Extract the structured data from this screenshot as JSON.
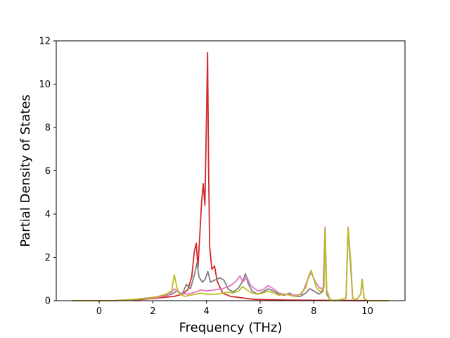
{
  "chart_data": {
    "type": "line",
    "title": "",
    "xlabel": "Frequency (THz)",
    "ylabel": "Partial Density of States",
    "xlim": [
      -1.6,
      11.4
    ],
    "ylim": [
      0,
      12
    ],
    "xticks": [
      0,
      2,
      4,
      6,
      8,
      10
    ],
    "yticks": [
      0,
      2,
      4,
      6,
      8,
      10,
      12
    ],
    "grid": false,
    "legend": "none",
    "series": [
      {
        "color": "#d62728",
        "points": [
          [
            -1.0,
            0
          ],
          [
            0.5,
            0
          ],
          [
            1.0,
            0.02
          ],
          [
            1.5,
            0.05
          ],
          [
            2.0,
            0.1
          ],
          [
            2.4,
            0.15
          ],
          [
            2.8,
            0.2
          ],
          [
            3.1,
            0.3
          ],
          [
            3.3,
            0.5
          ],
          [
            3.45,
            1.1
          ],
          [
            3.55,
            2.3
          ],
          [
            3.62,
            2.65
          ],
          [
            3.68,
            1.5
          ],
          [
            3.75,
            3.0
          ],
          [
            3.82,
            4.6
          ],
          [
            3.88,
            5.4
          ],
          [
            3.94,
            4.4
          ],
          [
            4.0,
            8.5
          ],
          [
            4.04,
            11.45
          ],
          [
            4.08,
            6.0
          ],
          [
            4.12,
            2.5
          ],
          [
            4.2,
            1.45
          ],
          [
            4.3,
            1.6
          ],
          [
            4.4,
            0.9
          ],
          [
            4.6,
            0.35
          ],
          [
            4.9,
            0.2
          ],
          [
            5.2,
            0.15
          ],
          [
            5.5,
            0.1
          ],
          [
            5.8,
            0.06
          ],
          [
            6.2,
            0.05
          ],
          [
            7.0,
            0.03
          ],
          [
            8.0,
            0.02
          ],
          [
            9.0,
            0.01
          ],
          [
            10.8,
            0
          ]
        ]
      },
      {
        "color": "#7f7f7f",
        "points": [
          [
            -1.0,
            0
          ],
          [
            0.5,
            0
          ],
          [
            1.2,
            0.05
          ],
          [
            1.8,
            0.12
          ],
          [
            2.3,
            0.2
          ],
          [
            2.7,
            0.3
          ],
          [
            2.9,
            0.45
          ],
          [
            3.1,
            0.3
          ],
          [
            3.25,
            0.75
          ],
          [
            3.4,
            0.55
          ],
          [
            3.55,
            1.2
          ],
          [
            3.65,
            1.75
          ],
          [
            3.72,
            1.1
          ],
          [
            3.85,
            0.85
          ],
          [
            3.95,
            1.0
          ],
          [
            4.05,
            1.35
          ],
          [
            4.15,
            0.85
          ],
          [
            4.3,
            0.95
          ],
          [
            4.5,
            1.05
          ],
          [
            4.65,
            0.95
          ],
          [
            4.8,
            0.55
          ],
          [
            5.0,
            0.4
          ],
          [
            5.2,
            0.6
          ],
          [
            5.35,
            0.9
          ],
          [
            5.45,
            1.25
          ],
          [
            5.55,
            0.8
          ],
          [
            5.7,
            0.45
          ],
          [
            5.9,
            0.3
          ],
          [
            6.1,
            0.4
          ],
          [
            6.3,
            0.55
          ],
          [
            6.5,
            0.45
          ],
          [
            6.7,
            0.3
          ],
          [
            6.9,
            0.25
          ],
          [
            7.1,
            0.35
          ],
          [
            7.3,
            0.2
          ],
          [
            7.5,
            0.2
          ],
          [
            7.7,
            0.35
          ],
          [
            7.85,
            0.55
          ],
          [
            8.0,
            0.45
          ],
          [
            8.2,
            0.3
          ],
          [
            8.35,
            0.45
          ],
          [
            8.42,
            3.3
          ],
          [
            8.48,
            0.3
          ],
          [
            8.6,
            0.05
          ],
          [
            8.8,
            0
          ],
          [
            9.2,
            0.1
          ],
          [
            9.28,
            3.3
          ],
          [
            9.38,
            1.5
          ],
          [
            9.45,
            0.1
          ],
          [
            9.6,
            0.05
          ],
          [
            9.75,
            0.3
          ],
          [
            9.8,
            0.95
          ],
          [
            9.88,
            0.1
          ],
          [
            10.0,
            0
          ],
          [
            10.8,
            0
          ]
        ]
      },
      {
        "color": "#e377c2",
        "points": [
          [
            -1.0,
            0
          ],
          [
            0.5,
            0
          ],
          [
            1.2,
            0.05
          ],
          [
            1.8,
            0.1
          ],
          [
            2.3,
            0.18
          ],
          [
            2.6,
            0.25
          ],
          [
            2.8,
            0.55
          ],
          [
            3.0,
            0.35
          ],
          [
            3.3,
            0.3
          ],
          [
            3.6,
            0.4
          ],
          [
            3.8,
            0.5
          ],
          [
            4.0,
            0.45
          ],
          [
            4.3,
            0.5
          ],
          [
            4.6,
            0.55
          ],
          [
            4.9,
            0.7
          ],
          [
            5.1,
            0.9
          ],
          [
            5.25,
            1.15
          ],
          [
            5.35,
            0.85
          ],
          [
            5.5,
            1.1
          ],
          [
            5.65,
            0.7
          ],
          [
            5.9,
            0.45
          ],
          [
            6.1,
            0.5
          ],
          [
            6.3,
            0.7
          ],
          [
            6.5,
            0.55
          ],
          [
            6.7,
            0.35
          ],
          [
            6.9,
            0.3
          ],
          [
            7.1,
            0.3
          ],
          [
            7.3,
            0.25
          ],
          [
            7.55,
            0.3
          ],
          [
            7.75,
            0.9
          ],
          [
            7.9,
            1.3
          ],
          [
            8.05,
            0.9
          ],
          [
            8.2,
            0.6
          ],
          [
            8.35,
            0.55
          ],
          [
            8.42,
            3.4
          ],
          [
            8.48,
            0.5
          ],
          [
            8.6,
            0.05
          ],
          [
            8.8,
            0
          ],
          [
            9.2,
            0.1
          ],
          [
            9.28,
            3.4
          ],
          [
            9.38,
            1.6
          ],
          [
            9.45,
            0.1
          ],
          [
            9.6,
            0.05
          ],
          [
            9.75,
            0.3
          ],
          [
            9.8,
            1.0
          ],
          [
            9.88,
            0.1
          ],
          [
            10.0,
            0
          ],
          [
            10.8,
            0
          ]
        ]
      },
      {
        "color": "#bcbd22",
        "points": [
          [
            -1.0,
            0
          ],
          [
            0.5,
            0
          ],
          [
            1.2,
            0.05
          ],
          [
            1.8,
            0.1
          ],
          [
            2.2,
            0.2
          ],
          [
            2.5,
            0.3
          ],
          [
            2.7,
            0.45
          ],
          [
            2.8,
            1.2
          ],
          [
            2.9,
            0.6
          ],
          [
            3.0,
            0.3
          ],
          [
            3.2,
            0.2
          ],
          [
            3.4,
            0.25
          ],
          [
            3.6,
            0.3
          ],
          [
            3.8,
            0.35
          ],
          [
            4.0,
            0.3
          ],
          [
            4.2,
            0.3
          ],
          [
            4.4,
            0.3
          ],
          [
            4.6,
            0.35
          ],
          [
            4.8,
            0.4
          ],
          [
            5.0,
            0.35
          ],
          [
            5.2,
            0.45
          ],
          [
            5.35,
            0.65
          ],
          [
            5.5,
            0.5
          ],
          [
            5.7,
            0.35
          ],
          [
            5.9,
            0.3
          ],
          [
            6.1,
            0.35
          ],
          [
            6.3,
            0.45
          ],
          [
            6.5,
            0.35
          ],
          [
            6.7,
            0.25
          ],
          [
            6.9,
            0.3
          ],
          [
            7.1,
            0.25
          ],
          [
            7.3,
            0.2
          ],
          [
            7.5,
            0.3
          ],
          [
            7.7,
            0.6
          ],
          [
            7.8,
            1.1
          ],
          [
            7.9,
            1.4
          ],
          [
            8.0,
            1.0
          ],
          [
            8.1,
            0.6
          ],
          [
            8.25,
            0.4
          ],
          [
            8.38,
            0.6
          ],
          [
            8.42,
            3.3
          ],
          [
            8.48,
            0.4
          ],
          [
            8.6,
            0.05
          ],
          [
            8.8,
            0
          ],
          [
            9.2,
            0.1
          ],
          [
            9.28,
            3.35
          ],
          [
            9.38,
            1.8
          ],
          [
            9.45,
            0.1
          ],
          [
            9.6,
            0.05
          ],
          [
            9.75,
            0.3
          ],
          [
            9.8,
            0.95
          ],
          [
            9.88,
            0.1
          ],
          [
            10.0,
            0
          ],
          [
            10.8,
            0
          ]
        ]
      }
    ]
  }
}
